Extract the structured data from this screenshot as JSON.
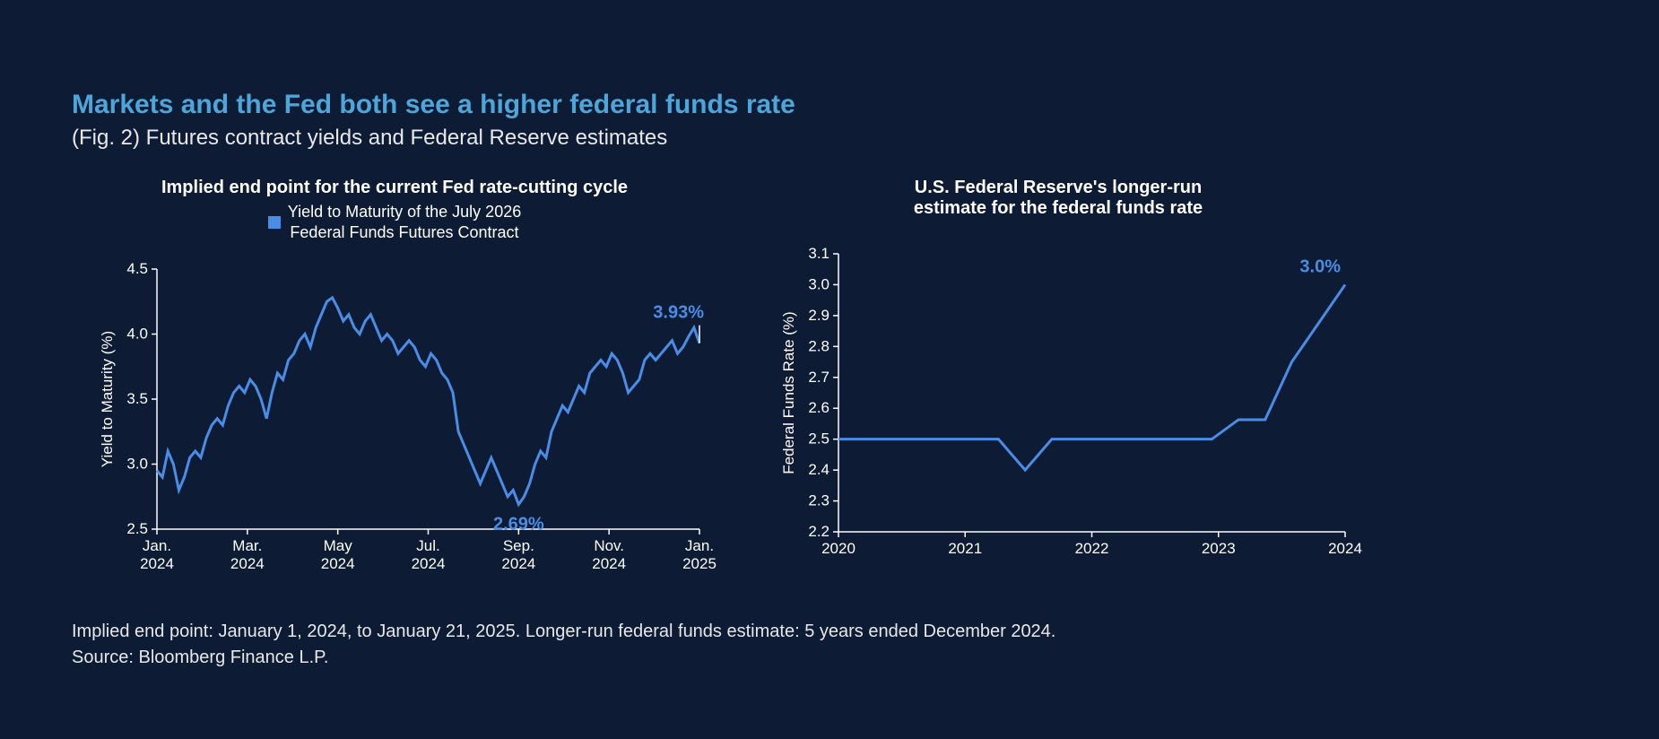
{
  "header": {
    "title": "Markets and the Fed both see a higher federal funds rate",
    "subtitle": "(Fig. 2) Futures contract yields and Federal Reserve estimates"
  },
  "colors": {
    "background": "#0d1b34",
    "title_color": "#4da6d9",
    "text_color": "#ffffff",
    "series_color": "#4a8de6",
    "axis_color": "#ffffff"
  },
  "typography": {
    "title_fontsize": 30,
    "subtitle_fontsize": 24,
    "chart_title_fontsize": 20,
    "tick_fontsize": 17,
    "callout_fontsize": 20,
    "footer_fontsize": 20,
    "font_family": "Arial"
  },
  "left_chart": {
    "type": "line",
    "title": "Implied end point for the current Fed rate-cutting cycle",
    "legend_label": "Yield to Maturity of the July 2026\nFederal Funds Futures Contract",
    "y_axis_label": "Yield to Maturity (%)",
    "ylim": [
      2.5,
      4.5
    ],
    "ytick_step": 0.5,
    "yticks": [
      2.5,
      3.0,
      3.5,
      4.0,
      4.5
    ],
    "x_tick_labels": [
      "Jan.\n2024",
      "Mar.\n2024",
      "May\n2024",
      "Jul.\n2024",
      "Sep.\n2024",
      "Nov.\n2024",
      "Jan.\n2025"
    ],
    "line_color": "#4a8de6",
    "line_width": 3,
    "callouts": [
      {
        "label": "2.69%",
        "x_index": 66,
        "y": 2.69,
        "position": "below"
      },
      {
        "label": "3.93%",
        "x_index": 99,
        "y": 3.93,
        "position": "above-right"
      }
    ],
    "series": [
      {
        "x": 0,
        "y": 2.95
      },
      {
        "x": 1,
        "y": 2.9
      },
      {
        "x": 2,
        "y": 3.1
      },
      {
        "x": 3,
        "y": 3.0
      },
      {
        "x": 4,
        "y": 2.8
      },
      {
        "x": 5,
        "y": 2.9
      },
      {
        "x": 6,
        "y": 3.05
      },
      {
        "x": 7,
        "y": 3.1
      },
      {
        "x": 8,
        "y": 3.05
      },
      {
        "x": 9,
        "y": 3.2
      },
      {
        "x": 10,
        "y": 3.3
      },
      {
        "x": 11,
        "y": 3.35
      },
      {
        "x": 12,
        "y": 3.3
      },
      {
        "x": 13,
        "y": 3.45
      },
      {
        "x": 14,
        "y": 3.55
      },
      {
        "x": 15,
        "y": 3.6
      },
      {
        "x": 16,
        "y": 3.55
      },
      {
        "x": 17,
        "y": 3.65
      },
      {
        "x": 18,
        "y": 3.6
      },
      {
        "x": 19,
        "y": 3.5
      },
      {
        "x": 20,
        "y": 3.35
      },
      {
        "x": 21,
        "y": 3.55
      },
      {
        "x": 22,
        "y": 3.7
      },
      {
        "x": 23,
        "y": 3.65
      },
      {
        "x": 24,
        "y": 3.8
      },
      {
        "x": 25,
        "y": 3.85
      },
      {
        "x": 26,
        "y": 3.95
      },
      {
        "x": 27,
        "y": 4.0
      },
      {
        "x": 28,
        "y": 3.9
      },
      {
        "x": 29,
        "y": 4.05
      },
      {
        "x": 30,
        "y": 4.15
      },
      {
        "x": 31,
        "y": 4.25
      },
      {
        "x": 32,
        "y": 4.28
      },
      {
        "x": 33,
        "y": 4.2
      },
      {
        "x": 34,
        "y": 4.1
      },
      {
        "x": 35,
        "y": 4.15
      },
      {
        "x": 36,
        "y": 4.05
      },
      {
        "x": 37,
        "y": 4.0
      },
      {
        "x": 38,
        "y": 4.1
      },
      {
        "x": 39,
        "y": 4.15
      },
      {
        "x": 40,
        "y": 4.05
      },
      {
        "x": 41,
        "y": 3.95
      },
      {
        "x": 42,
        "y": 4.0
      },
      {
        "x": 43,
        "y": 3.95
      },
      {
        "x": 44,
        "y": 3.85
      },
      {
        "x": 45,
        "y": 3.9
      },
      {
        "x": 46,
        "y": 3.95
      },
      {
        "x": 47,
        "y": 3.9
      },
      {
        "x": 48,
        "y": 3.8
      },
      {
        "x": 49,
        "y": 3.75
      },
      {
        "x": 50,
        "y": 3.85
      },
      {
        "x": 51,
        "y": 3.8
      },
      {
        "x": 52,
        "y": 3.7
      },
      {
        "x": 53,
        "y": 3.65
      },
      {
        "x": 54,
        "y": 3.55
      },
      {
        "x": 55,
        "y": 3.25
      },
      {
        "x": 56,
        "y": 3.15
      },
      {
        "x": 57,
        "y": 3.05
      },
      {
        "x": 58,
        "y": 2.95
      },
      {
        "x": 59,
        "y": 2.85
      },
      {
        "x": 60,
        "y": 2.95
      },
      {
        "x": 61,
        "y": 3.05
      },
      {
        "x": 62,
        "y": 2.95
      },
      {
        "x": 63,
        "y": 2.85
      },
      {
        "x": 64,
        "y": 2.75
      },
      {
        "x": 65,
        "y": 2.8
      },
      {
        "x": 66,
        "y": 2.69
      },
      {
        "x": 67,
        "y": 2.75
      },
      {
        "x": 68,
        "y": 2.85
      },
      {
        "x": 69,
        "y": 3.0
      },
      {
        "x": 70,
        "y": 3.1
      },
      {
        "x": 71,
        "y": 3.05
      },
      {
        "x": 72,
        "y": 3.25
      },
      {
        "x": 73,
        "y": 3.35
      },
      {
        "x": 74,
        "y": 3.45
      },
      {
        "x": 75,
        "y": 3.4
      },
      {
        "x": 76,
        "y": 3.5
      },
      {
        "x": 77,
        "y": 3.6
      },
      {
        "x": 78,
        "y": 3.55
      },
      {
        "x": 79,
        "y": 3.7
      },
      {
        "x": 80,
        "y": 3.75
      },
      {
        "x": 81,
        "y": 3.8
      },
      {
        "x": 82,
        "y": 3.75
      },
      {
        "x": 83,
        "y": 3.85
      },
      {
        "x": 84,
        "y": 3.8
      },
      {
        "x": 85,
        "y": 3.7
      },
      {
        "x": 86,
        "y": 3.55
      },
      {
        "x": 87,
        "y": 3.6
      },
      {
        "x": 88,
        "y": 3.65
      },
      {
        "x": 89,
        "y": 3.8
      },
      {
        "x": 90,
        "y": 3.85
      },
      {
        "x": 91,
        "y": 3.8
      },
      {
        "x": 92,
        "y": 3.85
      },
      {
        "x": 93,
        "y": 3.9
      },
      {
        "x": 94,
        "y": 3.95
      },
      {
        "x": 95,
        "y": 3.85
      },
      {
        "x": 96,
        "y": 3.9
      },
      {
        "x": 97,
        "y": 3.98
      },
      {
        "x": 98,
        "y": 4.05
      },
      {
        "x": 99,
        "y": 3.93
      }
    ]
  },
  "right_chart": {
    "type": "line",
    "title": "U.S. Federal Reserve's longer-run\nestimate for the federal funds rate",
    "y_axis_label": "Federal Funds Rate (%)",
    "ylim": [
      2.2,
      3.1
    ],
    "ytick_step": 0.1,
    "yticks": [
      2.2,
      2.3,
      2.4,
      2.5,
      2.6,
      2.7,
      2.8,
      2.9,
      3.0,
      3.1
    ],
    "x_tick_labels": [
      "2020",
      "2021",
      "2022",
      "2023",
      "2024"
    ],
    "line_color": "#4a8de6",
    "line_width": 3,
    "callouts": [
      {
        "label": "3.0%",
        "x_index": 19,
        "y": 3.0,
        "position": "above"
      }
    ],
    "series": [
      {
        "x": 0,
        "y": 2.5
      },
      {
        "x": 1,
        "y": 2.5
      },
      {
        "x": 2,
        "y": 2.5
      },
      {
        "x": 3,
        "y": 2.5
      },
      {
        "x": 4,
        "y": 2.5
      },
      {
        "x": 5,
        "y": 2.5
      },
      {
        "x": 6,
        "y": 2.5
      },
      {
        "x": 7,
        "y": 2.4
      },
      {
        "x": 8,
        "y": 2.5
      },
      {
        "x": 9,
        "y": 2.5
      },
      {
        "x": 10,
        "y": 2.5
      },
      {
        "x": 11,
        "y": 2.5
      },
      {
        "x": 12,
        "y": 2.5
      },
      {
        "x": 13,
        "y": 2.5
      },
      {
        "x": 14,
        "y": 2.5
      },
      {
        "x": 15,
        "y": 2.563
      },
      {
        "x": 16,
        "y": 2.563
      },
      {
        "x": 17,
        "y": 2.75
      },
      {
        "x": 18,
        "y": 2.875
      },
      {
        "x": 19,
        "y": 3.0
      }
    ]
  },
  "footer": {
    "line1": "Implied end point: January 1, 2024, to January 21, 2025. Longer-run federal funds estimate: 5 years ended December 2024.",
    "line2": "Source: Bloomberg Finance L.P."
  }
}
